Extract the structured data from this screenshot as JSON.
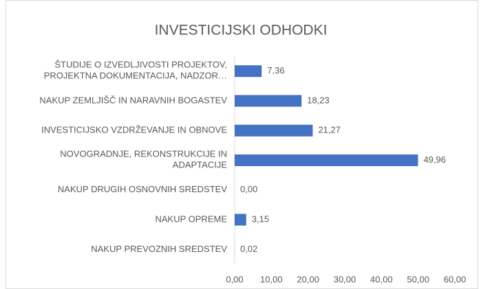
{
  "chart_data": {
    "type": "bar",
    "orientation": "horizontal",
    "title": "INVESTICIJSKI ODHODKI",
    "categories": [
      "ŠTUDIJE O IZVEDLJIVOSTI PROJEKTOV,\nPROJEKTNA DOKUMENTACIJA, NADZOR…",
      "NAKUP ZEMLJIŠČ IN NARAVNIH BOGASTEV",
      "INVESTICIJSKO VZDRŽEVANJE IN OBNOVE",
      "NOVOGRADNJE, REKONSTRUKCIJE IN\nADAPTACIJE",
      "NAKUP DRUGIH OSNOVNIH SREDSTEV",
      "NAKUP OPREME",
      "NAKUP PREVOZNIH SREDSTEV"
    ],
    "values": [
      7.36,
      18.23,
      21.27,
      49.96,
      0,
      3.15,
      0.02
    ],
    "value_labels": [
      "7,36",
      "18,23",
      "21,27",
      "49,96",
      "0,00",
      "3,15",
      "0,02"
    ],
    "color": "#4472c4",
    "xlim": [
      0,
      60
    ],
    "xticks": [
      {
        "value": 0,
        "label": "0,00"
      },
      {
        "value": 10,
        "label": "10,00"
      },
      {
        "value": 20,
        "label": "20,00"
      },
      {
        "value": 30,
        "label": "30,00"
      },
      {
        "value": 40,
        "label": "40,00"
      },
      {
        "value": 50,
        "label": "50,00"
      },
      {
        "value": 60,
        "label": "60,00"
      }
    ],
    "grid": false
  }
}
